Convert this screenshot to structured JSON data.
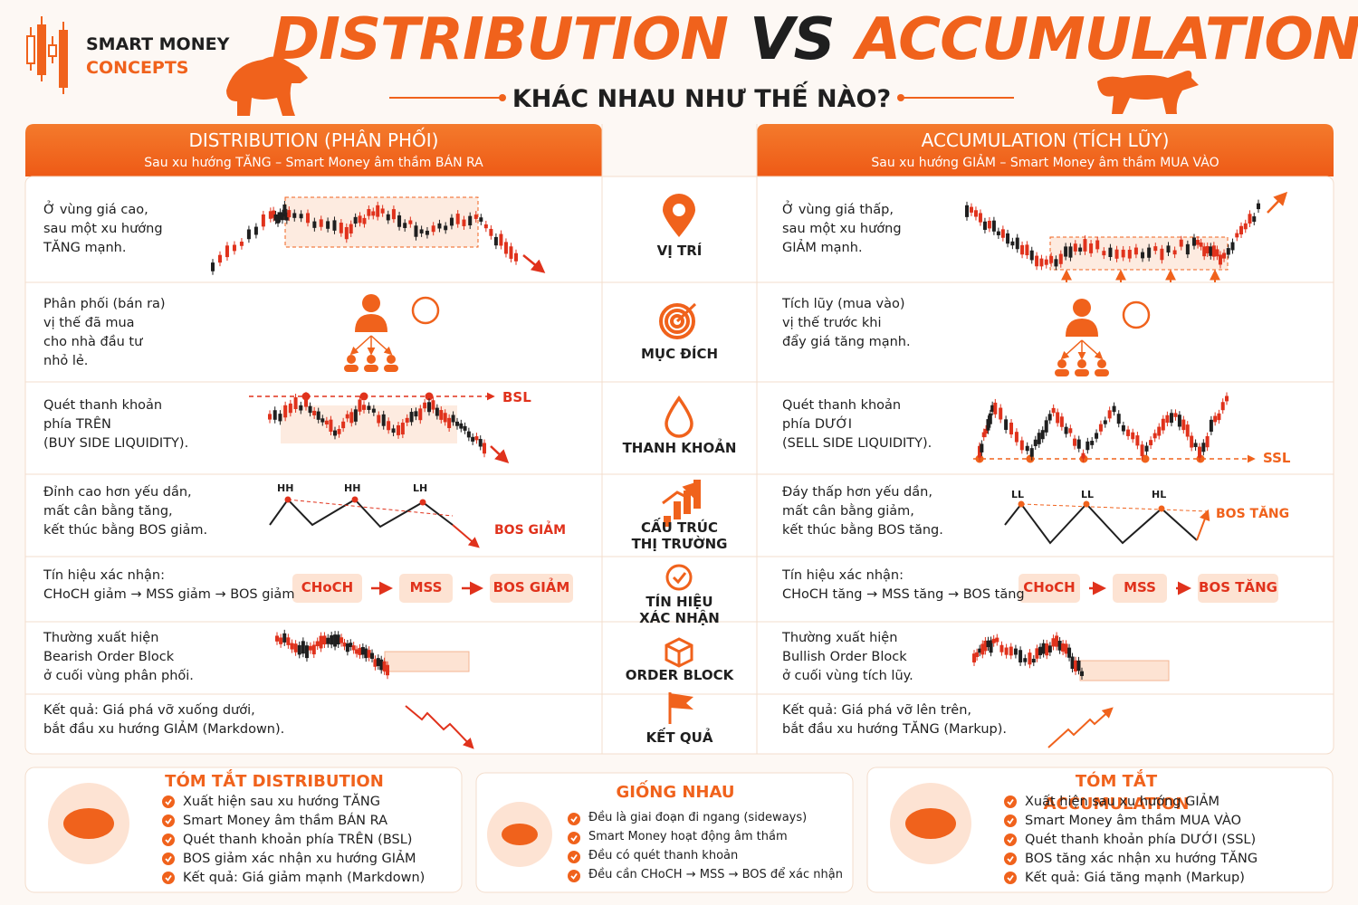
{
  "header": {
    "brand": [
      "SMART MONEY",
      "CONCEPTS"
    ],
    "title_left": "DISTRIBUTION",
    "title_vs": "VS",
    "title_right": "ACCUMULATION",
    "subtitle": "KHÁC NHAU NHƯ THẾ NÀO?"
  },
  "distribution": {
    "title": "DISTRIBUTION (PHÂN PHỐI)",
    "subtitle": "Sau xu hướng TĂNG – Smart Money âm thầm BÁN RA",
    "rows": [
      "Ở vùng giá cao,\nsau một xu hướng\nTĂNG mạnh.",
      "Phân phối (bán ra)\nvị thế đã mua\ncho nhà đầu tư\nnhỏ lẻ.",
      "Quét thanh khoản\nphía TRÊN\n(BUY SIDE LIQUIDITY).",
      "Đỉnh cao hơn yếu dần,\nmất cân bằng tăng,\nkết thúc bằng BOS giảm.",
      "Tín hiệu xác nhận:\nCHoCH giảm → MSS giảm → BOS giảm",
      "Thường xuất hiện\nBearish Order Block\nở cuối vùng phân phối.",
      "Kết quả: Giá phá vỡ xuống dưới,\nbắt đầu xu hướng GIẢM (Markdown)."
    ],
    "liquidity_label": "BSL",
    "structure_labels": [
      "HH",
      "HH",
      "LH"
    ],
    "bos_label": "BOS GIẢM",
    "signal_chain": [
      "CHoCH",
      "MSS",
      "BOS GIẢM"
    ]
  },
  "accumulation": {
    "title": "ACCUMULATION (TÍCH LŨY)",
    "subtitle": "Sau xu hướng GIẢM – Smart Money âm thầm MUA VÀO",
    "rows": [
      "Ở vùng giá thấp,\nsau một xu hướng\nGIẢM mạnh.",
      "Tích lũy (mua vào)\nvị thế trước khi\nđẩy giá tăng mạnh.",
      "Quét thanh khoản\nphía DƯỚI\n(SELL SIDE LIQUIDITY).",
      "Đáy thấp hơn yếu dần,\nmất cân bằng giảm,\nkết thúc bằng BOS tăng.",
      "Tín hiệu xác nhận:\nCHoCH tăng → MSS tăng → BOS tăng",
      "Thường xuất hiện\nBullish Order Block\nở cuối vùng tích lũy.",
      "Kết quả: Giá phá vỡ lên trên,\nbắt đầu xu hướng TĂNG (Markup)."
    ],
    "liquidity_label": "SSL",
    "structure_labels": [
      "LL",
      "LL",
      "HL"
    ],
    "bos_label": "BOS TĂNG",
    "signal_chain": [
      "CHoCH",
      "MSS",
      "BOS TĂNG"
    ]
  },
  "criteria": [
    "VỊ TRÍ",
    "MỤC ĐÍCH",
    "THANH KHOẢN",
    "CẤU TRÚC\nTHỊ TRƯỜNG",
    "TÍN HIỆU\nXÁC NHẬN",
    "ORDER BLOCK",
    "KẾT QUẢ"
  ],
  "summaries": [
    {
      "title": "TÓM TẮT DISTRIBUTION",
      "items": [
        "Xuất hiện sau xu hướng TĂNG",
        "Smart Money âm thầm BÁN RA",
        "Quét thanh khoản phía TRÊN (BSL)",
        "BOS giảm xác nhận xu hướng GIẢM",
        "Kết quả: Giá giảm mạnh (Markdown)"
      ]
    },
    {
      "title": "GIỐNG NHAU",
      "items": [
        "Đều là giai đoạn đi ngang (sideways)",
        "Smart Money hoạt động âm thầm",
        "Đều có quét thanh khoản",
        "Đều cần CHoCH → MSS → BOS để xác nhận"
      ]
    },
    {
      "title": "TÓM TẮT ACCUMULATION",
      "items": [
        "Xuất hiện sau xu hướng GIẢM",
        "Smart Money âm thầm MUA VÀO",
        "Quét thanh khoản phía DƯỚI (SSL)",
        "BOS tăng xác nhận xu hướng TĂNG",
        "Kết quả: Giá tăng mạnh (Markup)"
      ]
    }
  ]
}
